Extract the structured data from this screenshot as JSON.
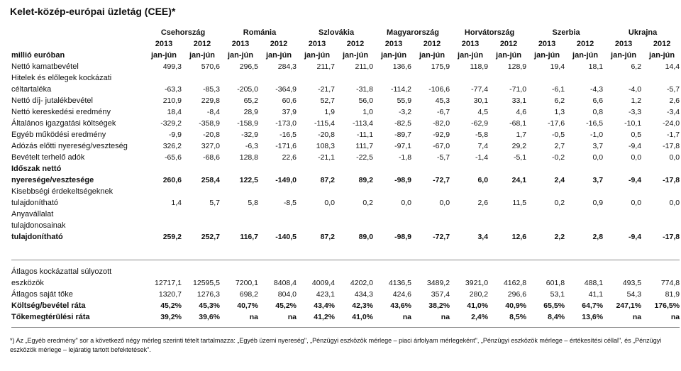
{
  "title": "Kelet-közép-európai üzletág (CEE)*",
  "unit_label": "millió euróban",
  "countries": [
    "Csehország",
    "Románia",
    "Szlovákia",
    "Magyarország",
    "Horvátország",
    "Szerbia",
    "Ukrajna"
  ],
  "years": [
    "2013",
    "2012",
    "2013",
    "2012",
    "2013",
    "2012",
    "2013",
    "2012",
    "2013",
    "2012",
    "2013",
    "2012",
    "2013",
    "2012"
  ],
  "period": "jan-jún",
  "rows_top": [
    {
      "label": "Nettó kamatbevétel",
      "v": [
        "499,3",
        "570,6",
        "296,5",
        "284,3",
        "211,7",
        "211,0",
        "136,6",
        "175,9",
        "118,9",
        "128,9",
        "19,4",
        "18,1",
        "6,2",
        "14,4"
      ]
    },
    {
      "label": "Hitelek és előlegek kockázati",
      "v": [
        "",
        "",
        "",
        "",
        "",
        "",
        "",
        "",
        "",
        "",
        "",
        "",
        "",
        ""
      ]
    },
    {
      "label": "céltartaléka",
      "v": [
        "-63,3",
        "-85,3",
        "-205,0",
        "-364,9",
        "-21,7",
        "-31,8",
        "-114,2",
        "-106,6",
        "-77,4",
        "-71,0",
        "-6,1",
        "-4,3",
        "-4,0",
        "-5,7"
      ]
    },
    {
      "label": "Nettó díj- jutalékbevétel",
      "v": [
        "210,9",
        "229,8",
        "65,2",
        "60,6",
        "52,7",
        "56,0",
        "55,9",
        "45,3",
        "30,1",
        "33,1",
        "6,2",
        "6,6",
        "1,2",
        "2,6"
      ]
    },
    {
      "label": "Nettó kereskedési eredmény",
      "v": [
        "18,4",
        "-8,4",
        "28,9",
        "37,9",
        "1,9",
        "1,0",
        "-3,2",
        "-6,7",
        "4,5",
        "4,6",
        "1,3",
        "0,8",
        "-3,3",
        "-3,4"
      ]
    },
    {
      "label": "Általános igazgatási költségek",
      "v": [
        "-329,2",
        "-358,9",
        "-158,9",
        "-173,0",
        "-115,4",
        "-113,4",
        "-82,5",
        "-82,0",
        "-62,9",
        "-68,1",
        "-17,6",
        "-16,5",
        "-10,1",
        "-24,0"
      ]
    },
    {
      "label": "Egyéb működési eredmény",
      "v": [
        "-9,9",
        "-20,8",
        "-32,9",
        "-16,5",
        "-20,8",
        "-11,1",
        "-89,7",
        "-92,9",
        "-5,8",
        "1,7",
        "-0,5",
        "-1,0",
        "0,5",
        "-1,7"
      ]
    },
    {
      "label": "Adózás előtti nyereség/veszteség",
      "v": [
        "326,2",
        "327,0",
        "-6,3",
        "-171,6",
        "108,3",
        "111,7",
        "-97,1",
        "-67,0",
        "7,4",
        "29,2",
        "2,7",
        "3,7",
        "-9,4",
        "-17,8"
      ]
    },
    {
      "label": "Bevételt terhelő adók",
      "v": [
        "-65,6",
        "-68,6",
        "128,8",
        "22,6",
        "-21,1",
        "-22,5",
        "-1,8",
        "-5,7",
        "-1,4",
        "-5,1",
        "-0,2",
        "0,0",
        "0,0",
        "0,0"
      ]
    },
    {
      "label": "Időszak nettó",
      "v": [
        "",
        "",
        "",
        "",
        "",
        "",
        "",
        "",
        "",
        "",
        "",
        "",
        "",
        ""
      ],
      "bold": true
    },
    {
      "label": "nyeresége/vesztesége",
      "v": [
        "260,6",
        "258,4",
        "122,5",
        "-149,0",
        "87,2",
        "89,2",
        "-98,9",
        "-72,7",
        "6,0",
        "24,1",
        "2,4",
        "3,7",
        "-9,4",
        "-17,8"
      ],
      "bold": true
    },
    {
      "label": "Kisebbségi érdekeltségeknek",
      "v": [
        "",
        "",
        "",
        "",
        "",
        "",
        "",
        "",
        "",
        "",
        "",
        "",
        "",
        ""
      ]
    },
    {
      "label": "tulajdonítható",
      "v": [
        "1,4",
        "5,7",
        "5,8",
        "-8,5",
        "0,0",
        "0,2",
        "0,0",
        "0,0",
        "2,6",
        "11,5",
        "0,2",
        "0,9",
        "0,0",
        "0,0"
      ]
    },
    {
      "label": "Anyavállalat",
      "v": [
        "",
        "",
        "",
        "",
        "",
        "",
        "",
        "",
        "",
        "",
        "",
        "",
        "",
        ""
      ]
    },
    {
      "label": "tulajdonosainak",
      "v": [
        "",
        "",
        "",
        "",
        "",
        "",
        "",
        "",
        "",
        "",
        "",
        "",
        "",
        ""
      ]
    },
    {
      "label": "tulajdonítható",
      "v": [
        "259,2",
        "252,7",
        "116,7",
        "-140,5",
        "87,2",
        "89,0",
        "-98,9",
        "-72,7",
        "3,4",
        "12,6",
        "2,2",
        "2,8",
        "-9,4",
        "-17,8"
      ],
      "bold": true
    }
  ],
  "rows_bottom": [
    {
      "label": "Átlagos kockázattal súlyozott",
      "v": [
        "",
        "",
        "",
        "",
        "",
        "",
        "",
        "",
        "",
        "",
        "",
        "",
        "",
        ""
      ]
    },
    {
      "label": "eszközök",
      "v": [
        "12717,1",
        "12595,5",
        "7200,1",
        "8408,4",
        "4009,4",
        "4202,0",
        "4136,5",
        "3489,2",
        "3921,0",
        "4162,8",
        "601,8",
        "488,1",
        "493,5",
        "774,8"
      ]
    },
    {
      "label": "Átlagos saját tőke",
      "v": [
        "1320,7",
        "1276,3",
        "698,2",
        "804,0",
        "423,1",
        "434,3",
        "424,6",
        "357,4",
        "280,2",
        "296,6",
        "53,1",
        "41,1",
        "54,3",
        "81,9"
      ]
    },
    {
      "label": "Költség/bevétel ráta",
      "v": [
        "45,2%",
        "45,3%",
        "40,7%",
        "45,2%",
        "43,4%",
        "42,3%",
        "43,6%",
        "38,2%",
        "41,0%",
        "40,9%",
        "65,5%",
        "64,7%",
        "247,1%",
        "176,5%"
      ],
      "bold": true
    },
    {
      "label": "Tőkemegtérülési ráta",
      "v": [
        "39,2%",
        "39,6%",
        "na",
        "na",
        "41,2%",
        "41,0%",
        "na",
        "na",
        "2,4%",
        "8,5%",
        "8,4%",
        "13,6%",
        "na",
        "na"
      ],
      "bold": true
    }
  ],
  "footnote": "*) Az „Egyéb eredmény\" sor a következő négy mérleg szerinti tételt tartalmazza: „Egyéb üzemi nyereség\", „Pénzügyi eszközök mérlege – piaci árfolyam mérlegeként\", „Pénzügyi eszközök mérlege – értékesítési céllal\", és „Pénzügyi eszközök mérlege – lejáratig tartott befektetések\"."
}
